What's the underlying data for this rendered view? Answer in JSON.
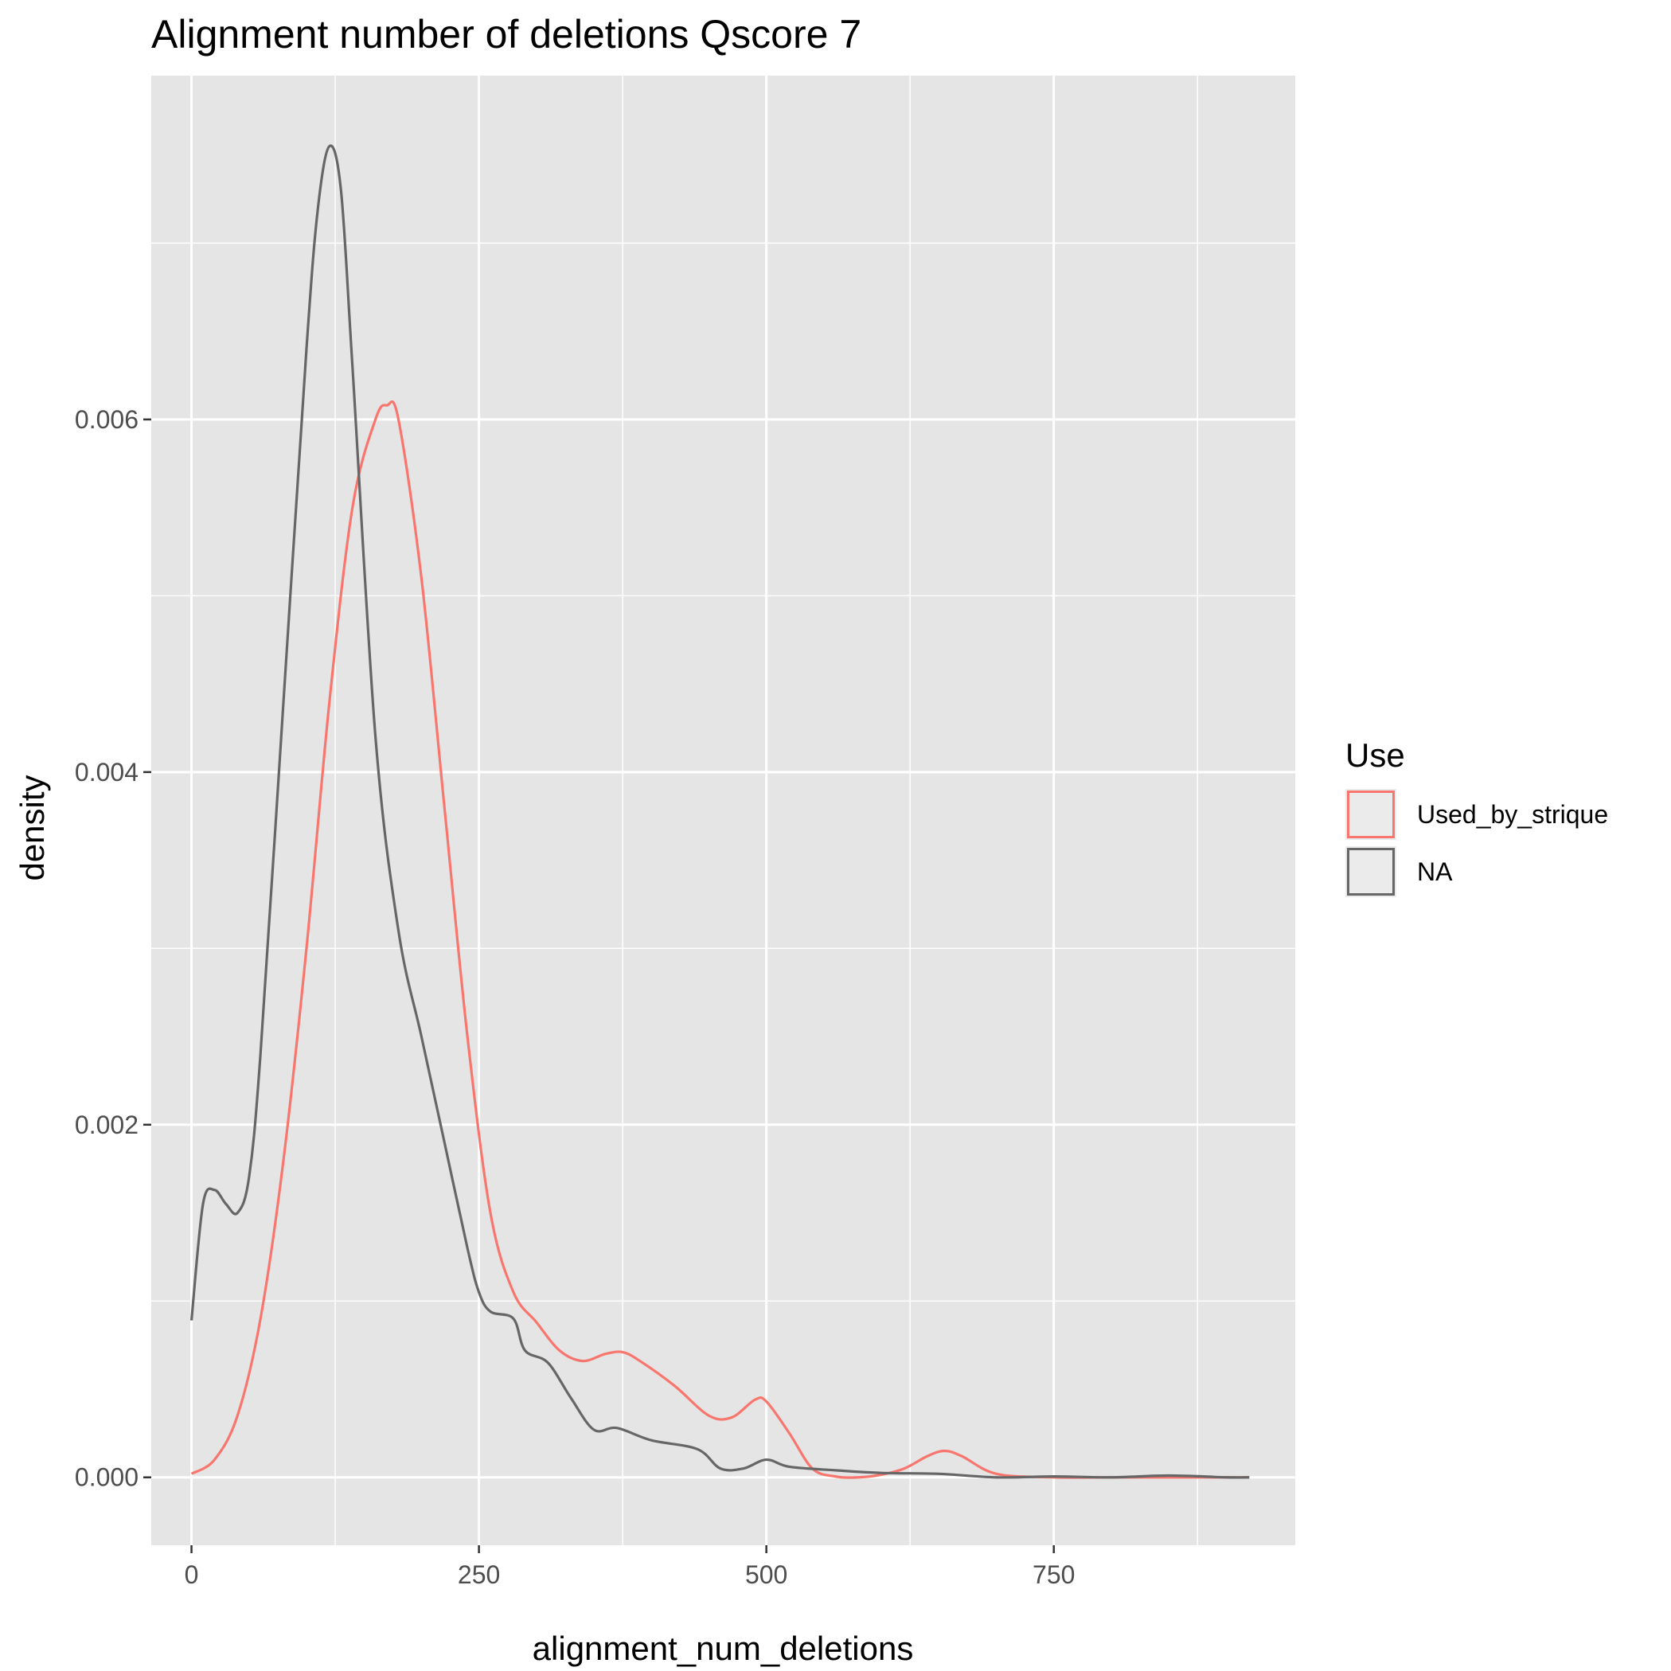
{
  "chart_data": {
    "type": "line",
    "title": "Alignment number of deletions Qscore 7",
    "xlabel": "alignment_num_deletions",
    "ylabel": "density",
    "xlim": [
      -35,
      960
    ],
    "ylim": [
      -0.000385,
      0.00795
    ],
    "x_ticks": [
      0,
      250,
      500,
      750
    ],
    "x_minor_ticks": [
      125,
      375,
      625,
      875
    ],
    "y_ticks": [
      0,
      0.002,
      0.004,
      0.006
    ],
    "y_tick_labels": [
      "0.000",
      "0.002",
      "0.004",
      "0.006"
    ],
    "y_minor_ticks": [
      0.001,
      0.003,
      0.005,
      0.007
    ],
    "grid": true,
    "legend": {
      "title": "Use",
      "placement": "right",
      "entries": [
        "Used_by_strique",
        "NA"
      ]
    },
    "series": [
      {
        "name": "Used_by_strique",
        "color": "#f8766d",
        "x": [
          0,
          20,
          40,
          60,
          80,
          100,
          120,
          140,
          160,
          170,
          180,
          200,
          220,
          240,
          260,
          280,
          300,
          320,
          340,
          360,
          375,
          390,
          420,
          450,
          470,
          490,
          500,
          520,
          540,
          560,
          580,
          600,
          620,
          640,
          655,
          670,
          700,
          750,
          800,
          850,
          900,
          920
        ],
        "y": [
          2e-05,
          0.0001,
          0.00035,
          0.0009,
          0.0018,
          0.003,
          0.0044,
          0.0055,
          0.006,
          0.00608,
          0.006,
          0.0051,
          0.0038,
          0.0025,
          0.0015,
          0.00105,
          0.00088,
          0.00072,
          0.00066,
          0.0007,
          0.00071,
          0.00066,
          0.00052,
          0.00035,
          0.00034,
          0.00044,
          0.00043,
          0.00025,
          5e-05,
          5e-06,
          0.0,
          1.5e-05,
          5e-05,
          0.00012,
          0.00015,
          0.00012,
          2e-05,
          0.0,
          0.0,
          0.0,
          0.0,
          0.0
        ]
      },
      {
        "name": "NA",
        "color": "#666666",
        "x": [
          0,
          10,
          20,
          30,
          40,
          50,
          60,
          80,
          100,
          110,
          120,
          130,
          140,
          160,
          180,
          200,
          220,
          240,
          250,
          260,
          280,
          290,
          310,
          330,
          350,
          370,
          400,
          440,
          460,
          480,
          500,
          520,
          560,
          600,
          650,
          700,
          750,
          800,
          850,
          900,
          920
        ],
        "y": [
          0.00089,
          0.00155,
          0.00163,
          0.00155,
          0.0015,
          0.0017,
          0.0024,
          0.0044,
          0.0064,
          0.0072,
          0.00755,
          0.0073,
          0.0063,
          0.0042,
          0.0031,
          0.0025,
          0.0019,
          0.0013,
          0.00105,
          0.00094,
          0.0009,
          0.00072,
          0.00065,
          0.00045,
          0.00027,
          0.00028,
          0.00021,
          0.00016,
          5e-05,
          5e-05,
          0.0001,
          6e-05,
          4e-05,
          2.5e-05,
          2e-05,
          0.0,
          5e-06,
          0.0,
          1e-05,
          0.0,
          0.0
        ]
      }
    ]
  }
}
